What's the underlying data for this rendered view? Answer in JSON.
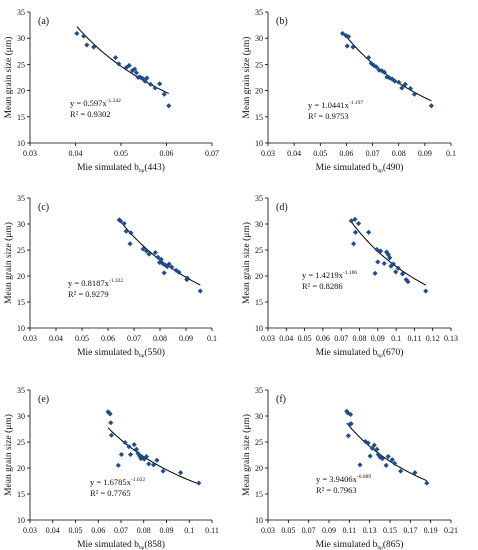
{
  "chart_data": [
    {
      "type": "scatter",
      "panel_label": "(a)",
      "xlabel_main": "Mie simulated b",
      "xlabel_sub": "bp",
      "xlabel_tail": "(443)",
      "ylabel": "Mean grain size (μm)",
      "xlim": [
        0.03,
        0.07
      ],
      "ylim": [
        10,
        35
      ],
      "x_ticks": [
        "0.03",
        "0.04",
        "0.05",
        "0.06",
        "0.07"
      ],
      "x_tick_values": [
        0.03,
        0.04,
        0.05,
        0.06,
        0.07
      ],
      "y_ticks": [
        "10",
        "15",
        "20",
        "25",
        "30",
        "35"
      ],
      "y_tick_values": [
        10,
        15,
        20,
        25,
        30,
        35
      ],
      "equation_main": "y = 0.597x",
      "equation_exp": "-1.242",
      "r2": "R² = 0.9302",
      "fit": {
        "a": 0.597,
        "b": -1.242
      },
      "x": [
        0.0403,
        0.0418,
        0.0425,
        0.044,
        0.0488,
        0.0495,
        0.0512,
        0.0518,
        0.0525,
        0.053,
        0.0534,
        0.0538,
        0.0542,
        0.0548,
        0.0553,
        0.0557,
        0.0565,
        0.0575,
        0.0585,
        0.0595,
        0.0605
      ],
      "y": [
        30.9,
        30.4,
        28.7,
        28.3,
        26.3,
        25.1,
        24.4,
        24.8,
        23.8,
        24.1,
        23.4,
        22.5,
        22.6,
        22.3,
        21.8,
        22.4,
        21.2,
        20.5,
        21.3,
        19.3,
        17.1
      ]
    },
    {
      "type": "scatter",
      "panel_label": "(b)",
      "xlabel_main": "Mie simulated b",
      "xlabel_sub": "bp",
      "xlabel_tail": "(490)",
      "ylabel": "Mean grain size (μm)",
      "xlim": [
        0.03,
        0.1
      ],
      "ylim": [
        10,
        35
      ],
      "x_ticks": [
        "0.03",
        "0.04",
        "0.05",
        "0.06",
        "0.07",
        "0.08",
        "0.09",
        "0.1"
      ],
      "x_tick_values": [
        0.03,
        0.04,
        0.05,
        0.06,
        0.07,
        0.08,
        0.09,
        0.1
      ],
      "y_ticks": [
        "10",
        "15",
        "20",
        "25",
        "30",
        "35"
      ],
      "y_tick_values": [
        10,
        15,
        20,
        25,
        30,
        35
      ],
      "equation_main": "y = 1.0441x",
      "equation_exp": "-1.197",
      "r2": "R² = 0.9753",
      "fit": {
        "a": 1.0441,
        "b": -1.197
      },
      "x": [
        0.0585,
        0.0598,
        0.0603,
        0.0608,
        0.0625,
        0.0685,
        0.0695,
        0.0705,
        0.0715,
        0.0725,
        0.0735,
        0.0745,
        0.0755,
        0.0765,
        0.0775,
        0.0785,
        0.08,
        0.0812,
        0.0825,
        0.0845,
        0.086,
        0.0925
      ],
      "y": [
        30.9,
        30.5,
        28.5,
        30.3,
        28.3,
        26.3,
        25.2,
        24.8,
        24.5,
        23.9,
        23.8,
        23.5,
        22.6,
        22.4,
        22.2,
        21.8,
        21.6,
        20.5,
        21.2,
        20.4,
        19.3,
        17.1
      ]
    },
    {
      "type": "scatter",
      "panel_label": "(c)",
      "xlabel_main": "Mie simulated b",
      "xlabel_sub": "bp",
      "xlabel_tail": "(550)",
      "ylabel": "Mean grain size (μm)",
      "xlim": [
        0.03,
        0.1
      ],
      "ylim": [
        10,
        35
      ],
      "x_ticks": [
        "0.03",
        "0.04",
        "0.05",
        "0.06",
        "0.07",
        "0.08",
        "0.09",
        "0.1"
      ],
      "x_tick_values": [
        0.03,
        0.04,
        0.05,
        0.06,
        0.07,
        0.08,
        0.09,
        0.1
      ],
      "y_ticks": [
        "10",
        "15",
        "20",
        "25",
        "30",
        "35"
      ],
      "y_tick_values": [
        10,
        15,
        20,
        25,
        30,
        35
      ],
      "equation_main": "y = 0.8187x",
      "equation_exp": "-1.322",
      "r2": "R² = 0.9279",
      "fit": {
        "a": 0.8187,
        "b": -1.322
      },
      "x": [
        0.0643,
        0.0648,
        0.0662,
        0.067,
        0.0685,
        0.0688,
        0.0735,
        0.0748,
        0.0758,
        0.0782,
        0.0792,
        0.0798,
        0.0805,
        0.081,
        0.0816,
        0.082,
        0.0828,
        0.0835,
        0.0845,
        0.0862,
        0.0873,
        0.0903,
        0.0905,
        0.0955
      ],
      "y": [
        30.8,
        30.6,
        30.1,
        28.6,
        26.2,
        28.3,
        25.2,
        24.8,
        24.2,
        24.5,
        23.6,
        22.6,
        23.2,
        22.4,
        20.6,
        22.1,
        21.8,
        22.3,
        21.7,
        21.1,
        20.7,
        19.3,
        19.6,
        17.1
      ]
    },
    {
      "type": "scatter",
      "panel_label": "(d)",
      "xlabel_main": "Mie simulated b",
      "xlabel_sub": "bp",
      "xlabel_tail": "(670)",
      "ylabel": "Mean grain size (μm)",
      "xlim": [
        0.03,
        0.13
      ],
      "ylim": [
        10,
        35
      ],
      "x_ticks": [
        "0.03",
        "0.04",
        "0.05",
        "0.06",
        "0.07",
        "0.08",
        "0.09",
        "0.1",
        "0.11",
        "0.12",
        "0.13"
      ],
      "x_tick_values": [
        0.03,
        0.04,
        0.05,
        0.06,
        0.07,
        0.08,
        0.09,
        0.1,
        0.11,
        0.12,
        0.13
      ],
      "y_ticks": [
        "10",
        "15",
        "20",
        "25",
        "30",
        "35"
      ],
      "y_tick_values": [
        10,
        15,
        20,
        25,
        30,
        35
      ],
      "equation_main": "y = 1.4219x",
      "equation_exp": "-1.186",
      "r2": "R² = 0.8286",
      "fit": {
        "a": 1.4219,
        "b": -1.186
      },
      "x": [
        0.0755,
        0.0768,
        0.0775,
        0.0778,
        0.0795,
        0.085,
        0.0885,
        0.0895,
        0.09,
        0.0915,
        0.0935,
        0.0948,
        0.0958,
        0.0965,
        0.0972,
        0.0985,
        0.0998,
        0.1012,
        0.1035,
        0.1055,
        0.1065,
        0.1162
      ],
      "y": [
        30.6,
        26.2,
        30.9,
        28.4,
        30.1,
        28.4,
        20.5,
        25.1,
        22.7,
        24.8,
        22.4,
        24.6,
        24.1,
        23.5,
        21.9,
        22.3,
        20.8,
        21.5,
        20.4,
        19.3,
        18.9,
        17.1
      ]
    },
    {
      "type": "scatter",
      "panel_label": "(e)",
      "xlabel_main": "Mie simulated b",
      "xlabel_sub": "bp",
      "xlabel_tail": "(858)",
      "ylabel": "Mean grain size (μm)",
      "xlim": [
        0.03,
        0.11
      ],
      "ylim": [
        10,
        35
      ],
      "x_ticks": [
        "0.03",
        "0.04",
        "0.05",
        "0.06",
        "0.07",
        "0.08",
        "0.09",
        "0.1",
        "0.11"
      ],
      "x_tick_values": [
        0.03,
        0.04,
        0.05,
        0.06,
        0.07,
        0.08,
        0.09,
        0.1,
        0.11
      ],
      "y_ticks": [
        "10",
        "15",
        "20",
        "25",
        "30",
        "35"
      ],
      "y_tick_values": [
        10,
        15,
        20,
        25,
        30,
        35
      ],
      "equation_main": "y = 1.6785x",
      "equation_exp": "-1.022",
      "r2": "R² = 0.7765",
      "fit": {
        "a": 1.6785,
        "b": -1.022
      },
      "x": [
        0.0643,
        0.0648,
        0.0652,
        0.0655,
        0.0658,
        0.0688,
        0.0702,
        0.0718,
        0.0735,
        0.0742,
        0.0758,
        0.0768,
        0.0775,
        0.0782,
        0.0788,
        0.0793,
        0.0802,
        0.0812,
        0.0822,
        0.0843,
        0.0858,
        0.0885,
        0.0962,
        0.1042
      ],
      "y": [
        30.8,
        30.6,
        30.4,
        28.7,
        26.3,
        20.5,
        22.6,
        24.9,
        24.1,
        22.6,
        24.5,
        23.6,
        22.8,
        22.3,
        21.8,
        22.1,
        21.7,
        22.2,
        20.8,
        20.6,
        21.5,
        19.4,
        19.1,
        17.1
      ]
    },
    {
      "type": "scatter",
      "panel_label": "(f)",
      "xlabel_main": "Mie simulated b",
      "xlabel_sub": "bp",
      "xlabel_tail": "(865)",
      "ylabel": "Mean grain size (μm)",
      "xlim": [
        0.03,
        0.21
      ],
      "ylim": [
        10,
        35
      ],
      "x_ticks": [
        "0.03",
        "0.05",
        "0.07",
        "0.09",
        "0.11",
        "0.13",
        "0.15",
        "0.17",
        "0.19",
        "0.21"
      ],
      "x_tick_values": [
        0.03,
        0.05,
        0.07,
        0.09,
        0.11,
        0.13,
        0.15,
        0.17,
        0.19,
        0.21
      ],
      "y_ticks": [
        "10",
        "15",
        "20",
        "25",
        "30",
        "35"
      ],
      "y_tick_values": [
        10,
        15,
        20,
        25,
        30,
        35
      ],
      "equation_main": "y = 3.9406x",
      "equation_exp": "-0.889",
      "r2": "R² = 0.7963",
      "fit": {
        "a": 3.9406,
        "b": -0.889
      },
      "x": [
        0.1075,
        0.1085,
        0.109,
        0.1105,
        0.1112,
        0.1118,
        0.1205,
        0.1258,
        0.1285,
        0.1305,
        0.1325,
        0.1345,
        0.1372,
        0.1385,
        0.1402,
        0.1425,
        0.1462,
        0.1482,
        0.1522,
        0.1545,
        0.1605,
        0.1745,
        0.1862
      ],
      "y": [
        30.9,
        30.6,
        26.2,
        28.4,
        30.3,
        28.5,
        20.6,
        25.1,
        24.8,
        22.3,
        23.8,
        24.4,
        23.6,
        22.6,
        22.1,
        21.8,
        20.5,
        22.2,
        21.6,
        20.9,
        19.4,
        19.1,
        17.1
      ]
    }
  ]
}
